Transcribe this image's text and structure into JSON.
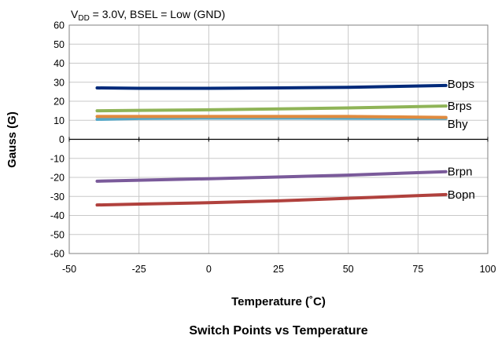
{
  "chart_data": {
    "type": "line",
    "title": "Switch Points vs Temperature",
    "condition": {
      "vdd_symbol": "V",
      "vdd_subscript": "DD",
      "rest": " = 3.0V, BSEL = Low (GND)"
    },
    "xlabel": "Temperature (˚C)",
    "ylabel": "Gauss (G)",
    "xlim": [
      -50,
      100
    ],
    "ylim": [
      -60,
      60
    ],
    "xticks": [
      "-50",
      "-25",
      "0",
      "25",
      "50",
      "75",
      "100"
    ],
    "yticks": [
      "60",
      "50",
      "40",
      "30",
      "20",
      "10",
      "0",
      "-10",
      "-20",
      "-30",
      "-40",
      "-50",
      "-60"
    ],
    "grid": true,
    "x": [
      -40,
      -25,
      0,
      25,
      50,
      85
    ],
    "series": [
      {
        "name": "Bops",
        "color": "#002a7a",
        "values": [
          27,
          26.8,
          26.8,
          27,
          27.3,
          28.3
        ]
      },
      {
        "name": "Brps",
        "color": "#8fb457",
        "values": [
          15,
          15.2,
          15.5,
          16,
          16.5,
          17.5
        ]
      },
      {
        "name": "Bhy",
        "color": "#54a8c8",
        "values": [
          10.5,
          11,
          11.2,
          11.2,
          11.1,
          11
        ]
      },
      {
        "name": "",
        "color": "#e08a3e",
        "values": [
          12,
          12,
          12,
          12,
          12,
          11.5
        ]
      },
      {
        "name": "Brpn",
        "color": "#7a5a9a",
        "values": [
          -22,
          -21.5,
          -20.7,
          -19.8,
          -18.8,
          -17
        ]
      },
      {
        "name": "Bopn",
        "color": "#b0413d",
        "values": [
          -34.5,
          -34,
          -33.3,
          -32.3,
          -31,
          -29
        ]
      }
    ]
  }
}
